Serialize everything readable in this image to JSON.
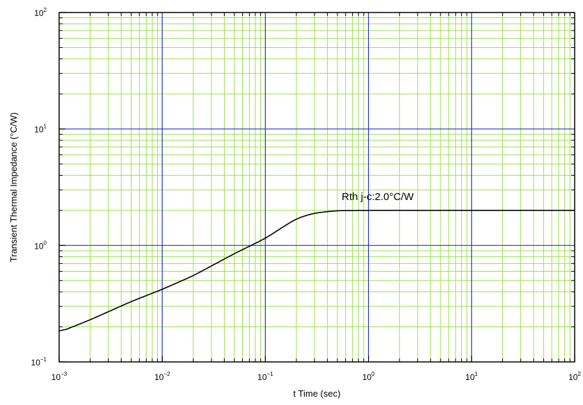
{
  "chart_data": {
    "type": "line",
    "title": "",
    "xlabel": "t    Time  (sec)",
    "ylabel": "Transient Thermal Impedance  (°C/W)",
    "x_scale": "log",
    "y_scale": "log",
    "xlim": [
      0.001,
      100
    ],
    "ylim": [
      0.1,
      100
    ],
    "grid": true,
    "x_ticks": [
      {
        "value": 0.001,
        "base": "10",
        "exp": "−3"
      },
      {
        "value": 0.01,
        "base": "10",
        "exp": "−2"
      },
      {
        "value": 0.1,
        "base": "10",
        "exp": "−1"
      },
      {
        "value": 1,
        "base": "10",
        "exp": "0"
      },
      {
        "value": 10,
        "base": "10",
        "exp": "1"
      },
      {
        "value": 100,
        "base": "10",
        "exp": "2"
      }
    ],
    "y_ticks": [
      {
        "value": 0.1,
        "base": "10",
        "exp": "−1"
      },
      {
        "value": 1,
        "base": "10",
        "exp": "0"
      },
      {
        "value": 10,
        "base": "10",
        "exp": "1"
      },
      {
        "value": 100,
        "base": "10",
        "exp": "2"
      }
    ],
    "series": [
      {
        "color": "#000000",
        "points": [
          [
            0.001,
            0.18
          ],
          [
            0.002,
            0.23
          ],
          [
            0.005,
            0.33
          ],
          [
            0.01,
            0.42
          ],
          [
            0.02,
            0.55
          ],
          [
            0.05,
            0.85
          ],
          [
            0.1,
            1.15
          ],
          [
            0.15,
            1.45
          ],
          [
            0.2,
            1.7
          ],
          [
            0.3,
            1.9
          ],
          [
            0.5,
            1.99
          ],
          [
            1,
            2.0
          ],
          [
            10,
            2.0
          ],
          [
            100,
            2.0
          ]
        ]
      }
    ],
    "annotations": [
      {
        "text": "Rth j-c:2.0°C/W",
        "x": 0.55,
        "y": 2.45
      }
    ],
    "colors": {
      "major_grid": "#2233cc",
      "minor_grid": "#99e24a",
      "axis": "#000000",
      "curve": "#000000"
    }
  }
}
